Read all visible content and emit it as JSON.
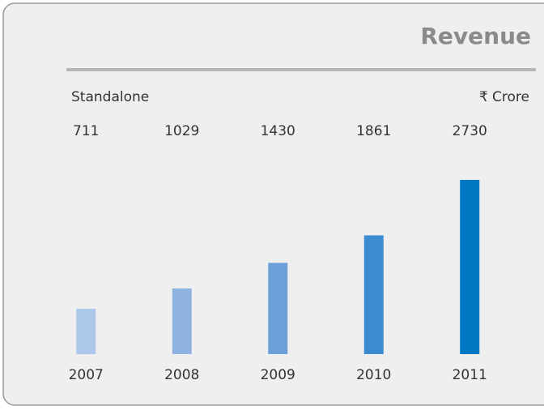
{
  "chart_data": {
    "type": "bar",
    "title": "Revenue",
    "subtitle": "Standalone",
    "unit_label": "₹ Crore",
    "categories": [
      "2007",
      "2008",
      "2009",
      "2010",
      "2011"
    ],
    "values": [
      711,
      1029,
      1430,
      1861,
      2730
    ],
    "colors": [
      "#adc8ea",
      "#8fb3e0",
      "#6a9fd8",
      "#3d8bd0",
      "#0078c4"
    ]
  }
}
